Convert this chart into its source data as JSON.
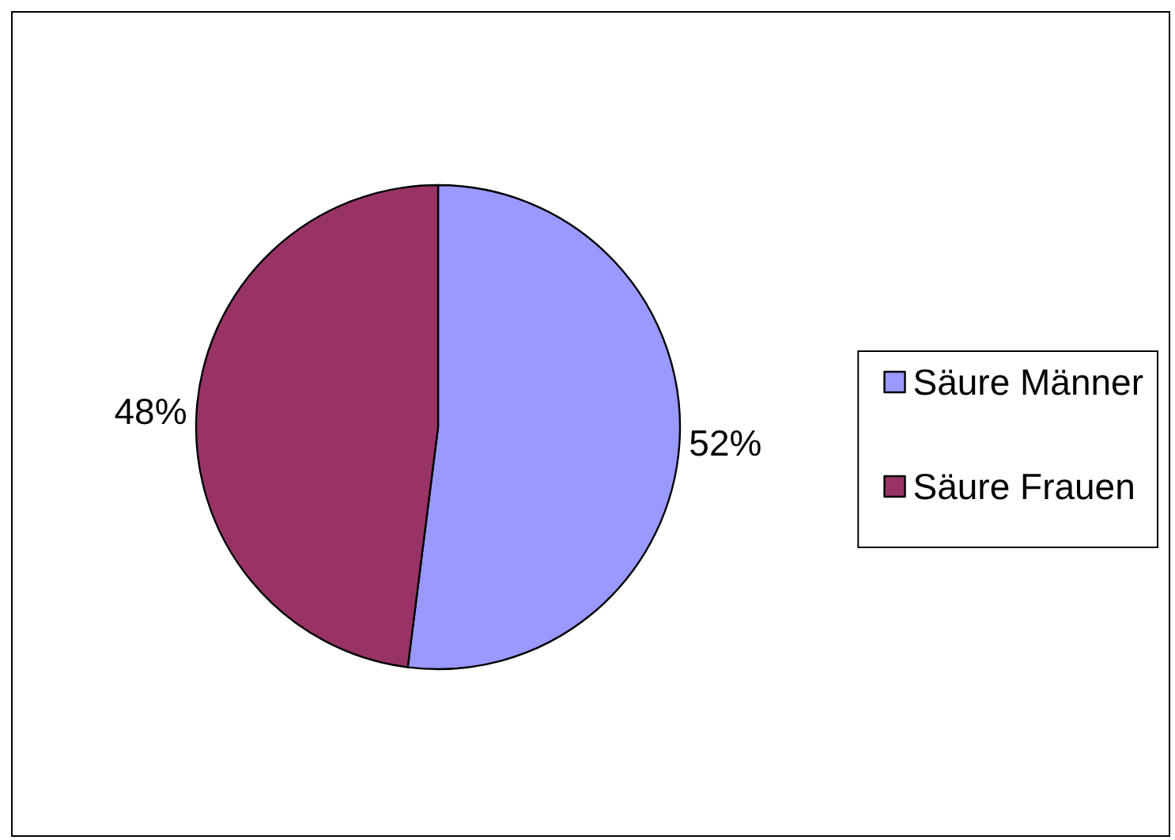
{
  "chart_data": {
    "type": "pie",
    "categories": [
      "Säure Männer",
      "Säure Frauen"
    ],
    "values": [
      52,
      48
    ],
    "colors": [
      "#9999ff",
      "#993366"
    ],
    "value_labels": [
      "52%",
      "48%"
    ],
    "legend": "right"
  }
}
